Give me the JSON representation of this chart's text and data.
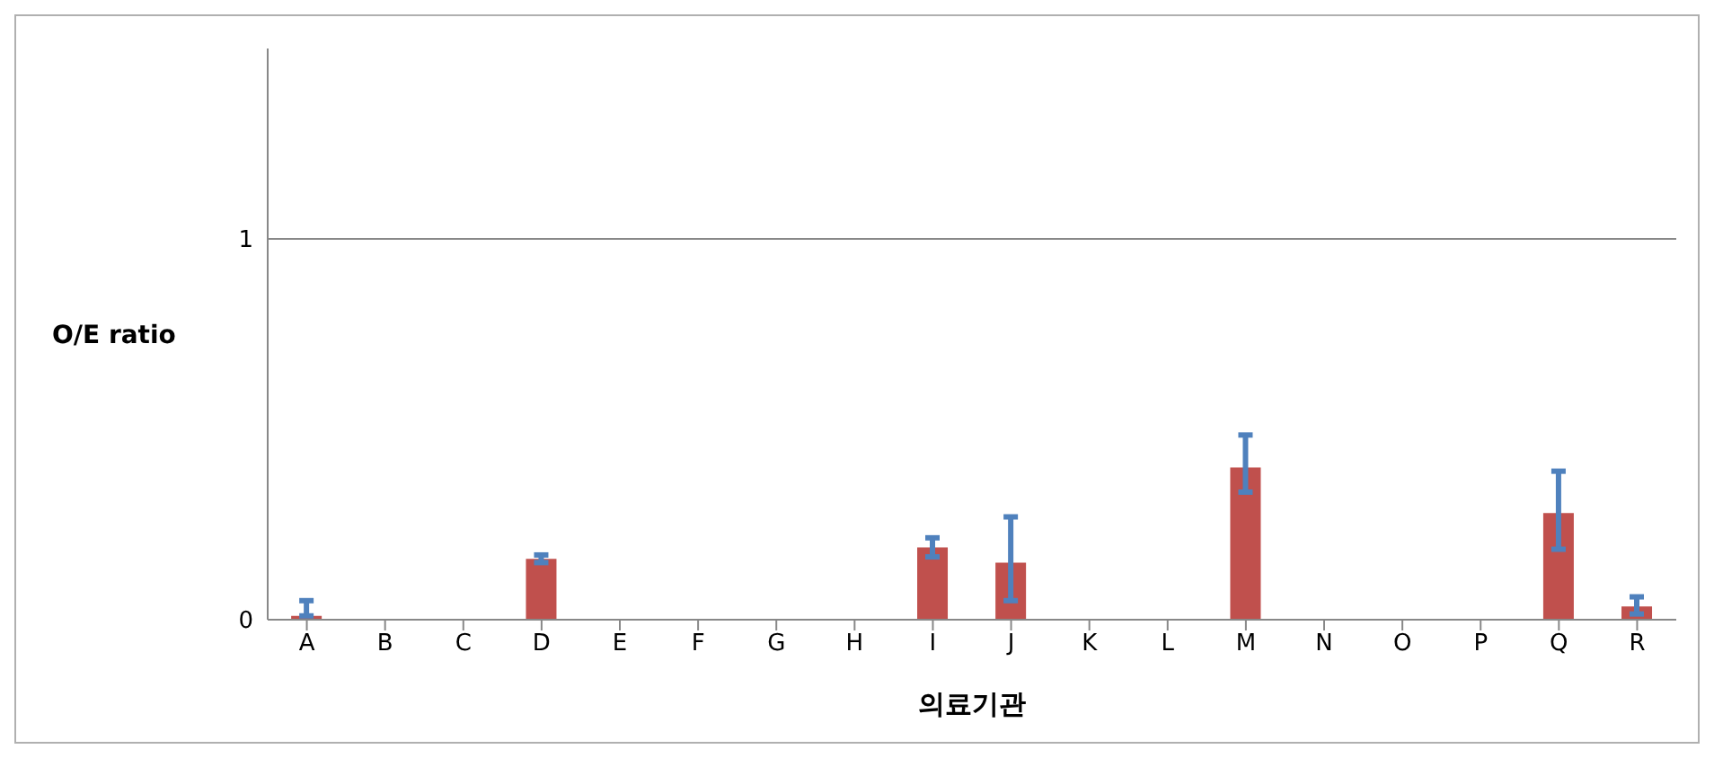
{
  "chart_data": {
    "type": "bar",
    "xlabel": "의료기관",
    "ylabel": "O/E ratio",
    "categories": [
      "A",
      "B",
      "C",
      "D",
      "E",
      "F",
      "G",
      "H",
      "I",
      "J",
      "K",
      "L",
      "M",
      "N",
      "O",
      "P",
      "Q",
      "R"
    ],
    "values": [
      0.01,
      0,
      0,
      0.16,
      0,
      0,
      0,
      0,
      0.19,
      0.15,
      0,
      0,
      0.4,
      0,
      0,
      0,
      0.28,
      0.035
    ],
    "errors": [
      [
        0.01,
        0.05
      ],
      null,
      null,
      [
        0.15,
        0.17
      ],
      null,
      null,
      null,
      null,
      [
        0.165,
        0.215
      ],
      [
        0.05,
        0.27
      ],
      null,
      null,
      [
        0.335,
        0.485
      ],
      null,
      null,
      null,
      [
        0.185,
        0.39
      ],
      [
        0.015,
        0.06
      ]
    ],
    "color": "#c0504d",
    "ylim": [
      0,
      1.5
    ],
    "yticks": [
      0,
      1
    ],
    "grid": "y"
  }
}
